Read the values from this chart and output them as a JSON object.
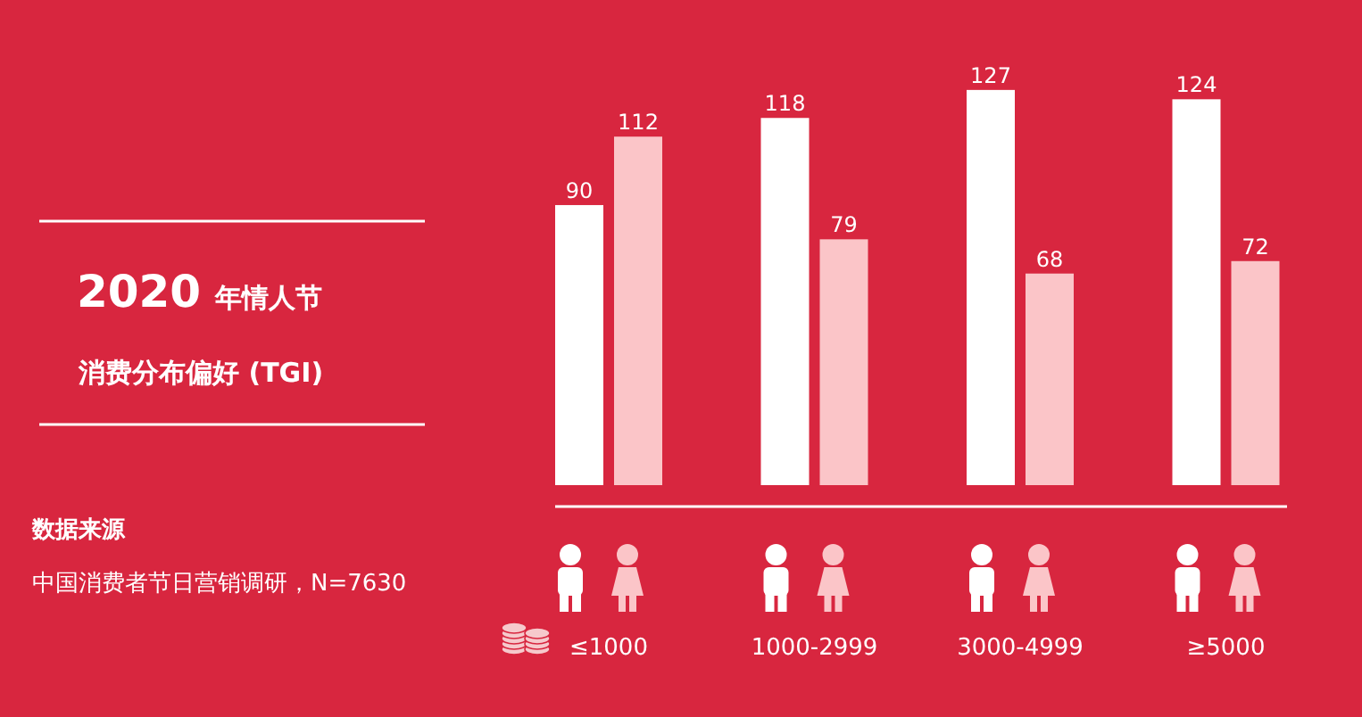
{
  "chart_data": {
    "type": "bar",
    "title": "2020 年情人节",
    "subtitle": "消费分布偏好 (TGI)",
    "annotations": [
      "数据来源",
      "中国消费者节日营销调研，N=7630"
    ],
    "categories": [
      "≤1000",
      "1000-2999",
      "3000-4999",
      "≥5000"
    ],
    "series": [
      {
        "color": "#ffffff",
        "values": [
          90,
          118,
          127,
          124
        ]
      },
      {
        "color": "#fbc5c8",
        "values": [
          112,
          79,
          68,
          72
        ]
      }
    ],
    "data_labels": true
  }
}
